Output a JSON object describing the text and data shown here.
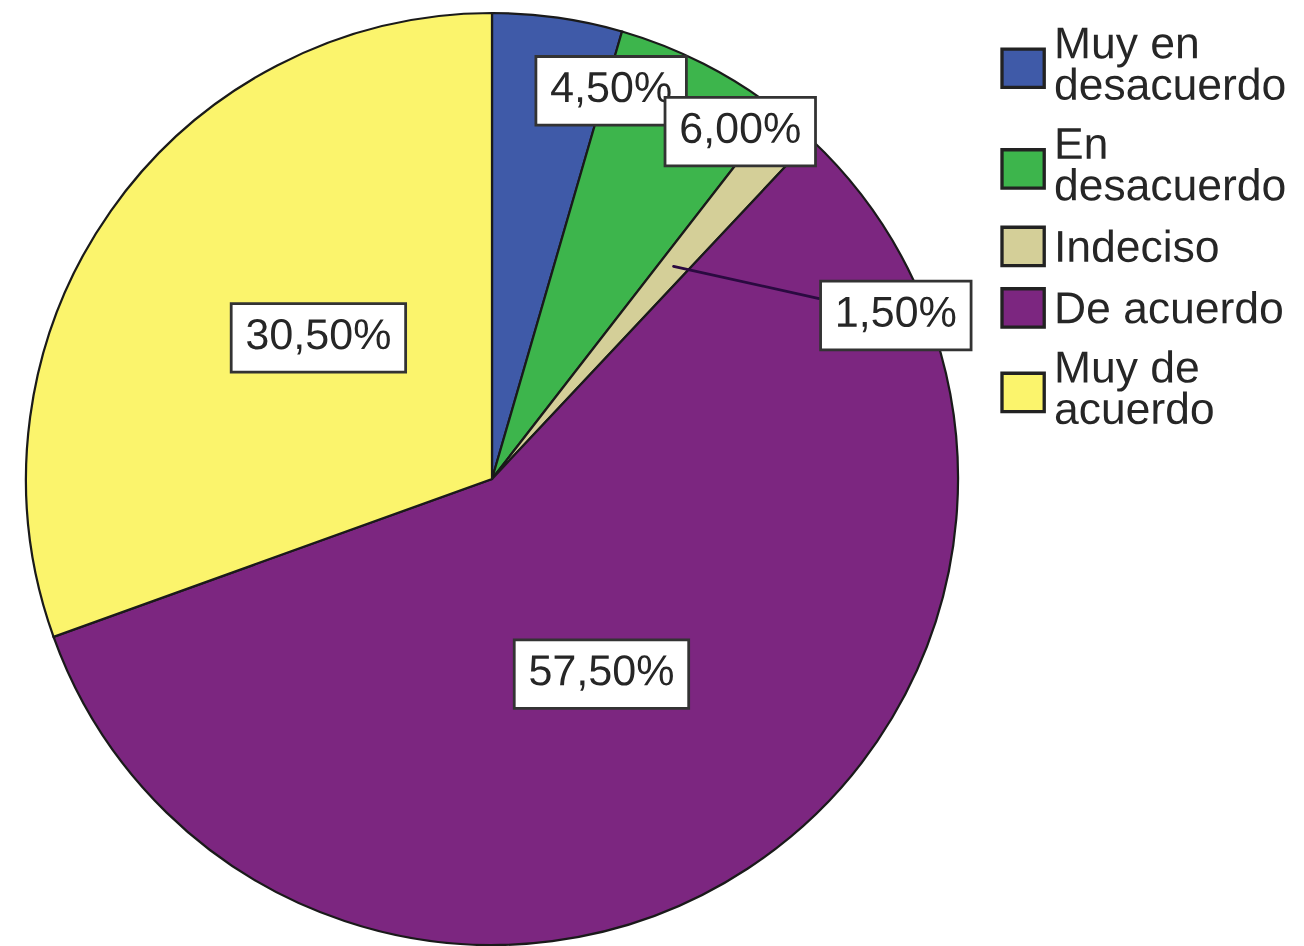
{
  "chart_data": {
    "type": "pie",
    "categories": [
      "Muy en desacuerdo",
      "En desacuerdo",
      "Indeciso",
      "De acuerdo",
      "Muy de acuerdo"
    ],
    "values": [
      4.5,
      6.0,
      1.5,
      57.5,
      30.5
    ],
    "colors": [
      "#3f5aa8",
      "#3db54c",
      "#d4cf98",
      "#7c2680",
      "#fbf46c"
    ],
    "value_labels": [
      "4,50%",
      "6,00%",
      "1,50%",
      "57,50%",
      "30,50%"
    ],
    "legend": "top right"
  }
}
